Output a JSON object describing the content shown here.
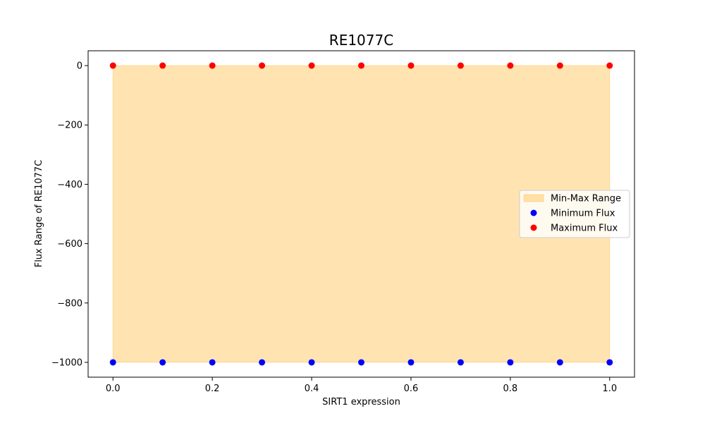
{
  "chart_data": {
    "type": "scatter",
    "title": "RE1077C",
    "xlabel": "SIRT1 expression",
    "ylabel": "Flux Range of RE1077C",
    "xlim": [
      -0.05,
      1.05
    ],
    "ylim": [
      -1050,
      50
    ],
    "xticks": [
      0.0,
      0.2,
      0.4,
      0.6,
      0.8,
      1.0
    ],
    "xtick_labels": [
      "0.0",
      "0.2",
      "0.4",
      "0.6",
      "0.8",
      "1.0"
    ],
    "yticks": [
      0,
      -200,
      -400,
      -600,
      -800,
      -1000
    ],
    "ytick_labels": [
      "0",
      "−200",
      "−400",
      "−600",
      "−800",
      "−1000"
    ],
    "x": [
      0.0,
      0.1,
      0.2,
      0.3,
      0.4,
      0.5,
      0.6,
      0.7,
      0.8,
      0.9,
      1.0
    ],
    "series": [
      {
        "name": "Minimum Flux",
        "color": "#0000ff",
        "values": [
          -1000,
          -1000,
          -1000,
          -1000,
          -1000,
          -1000,
          -1000,
          -1000,
          -1000,
          -1000,
          -1000
        ]
      },
      {
        "name": "Maximum Flux",
        "color": "#ff0000",
        "values": [
          0,
          0,
          0,
          0,
          0,
          0,
          0,
          0,
          0,
          0,
          0
        ]
      }
    ],
    "range_fill": {
      "name": "Min-Max Range",
      "color": "#ffa500",
      "opacity": 0.3
    },
    "grid": false,
    "legend_position": "center-right"
  }
}
